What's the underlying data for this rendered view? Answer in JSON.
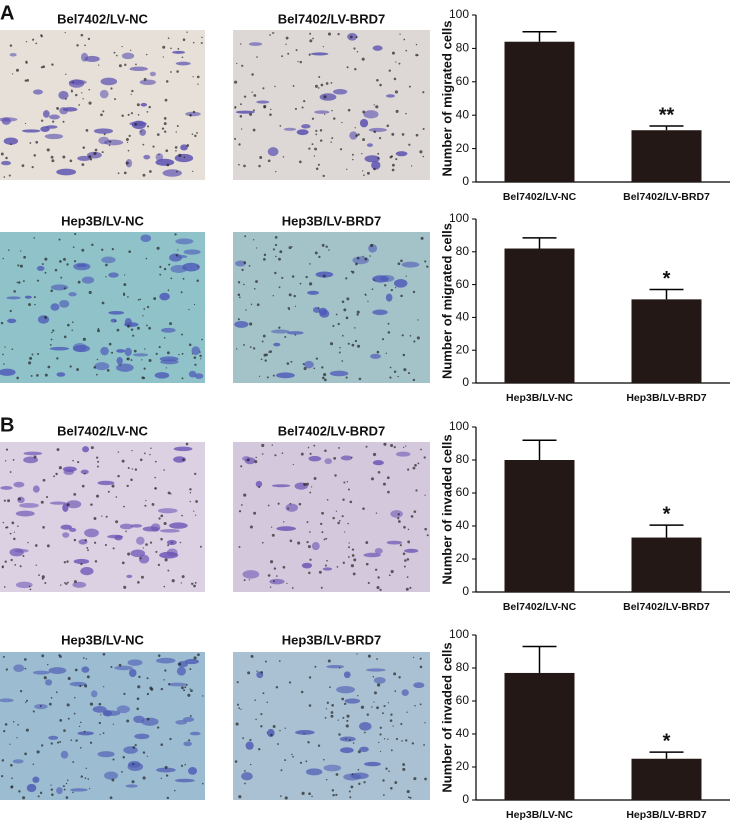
{
  "panels": [
    {
      "label": "A",
      "images": [
        "Bel7402/LV-NC",
        "Bel7402/LV-BRD7",
        "Hep3B/LV-NC",
        "Hep3B/LV-BRD7"
      ]
    },
    {
      "label": "B",
      "images": [
        "Bel7402/LV-NC",
        "Bel7402/LV-BRD7",
        "Hep3B/LV-NC",
        "Hep3B/LV-BRD7"
      ]
    }
  ],
  "chart_data": [
    {
      "type": "bar",
      "y_label": "Number of migrated cells",
      "categories": [
        "Bel7402/LV-NC",
        "Bel7402/LV-BRD7"
      ],
      "values": [
        84,
        31
      ],
      "errors": [
        6,
        2.5
      ],
      "annotation": "**",
      "color": "#231815",
      "ylim": [
        0,
        100
      ],
      "yticks": [
        0,
        20,
        40,
        60,
        80,
        100
      ]
    },
    {
      "type": "bar",
      "y_label": "Number of migrated cells",
      "categories": [
        "Hep3B/LV-NC",
        "Hep3B/LV-BRD7"
      ],
      "values": [
        82,
        51
      ],
      "errors": [
        6.5,
        6
      ],
      "annotation": "*",
      "color": "#231815",
      "ylim": [
        0,
        100
      ],
      "yticks": [
        0,
        20,
        40,
        60,
        80,
        100
      ]
    },
    {
      "type": "bar",
      "y_label": "Number of invaded cells",
      "categories": [
        "Bel7402/LV-NC",
        "Bel7402/LV-BRD7"
      ],
      "values": [
        80,
        33
      ],
      "errors": [
        12,
        7.5
      ],
      "annotation": "*",
      "color": "#231815",
      "ylim": [
        0,
        100
      ],
      "yticks": [
        0,
        20,
        40,
        60,
        80,
        100
      ]
    },
    {
      "type": "bar",
      "y_label": "Number of invaded cells",
      "categories": [
        "Hep3B/LV-NC",
        "Hep3B/LV-BRD7"
      ],
      "values": [
        77,
        25
      ],
      "errors": [
        16,
        4
      ],
      "annotation": "*",
      "color": "#231815",
      "ylim": [
        0,
        100
      ],
      "yticks": [
        0,
        20,
        40,
        60,
        80,
        100
      ]
    }
  ]
}
